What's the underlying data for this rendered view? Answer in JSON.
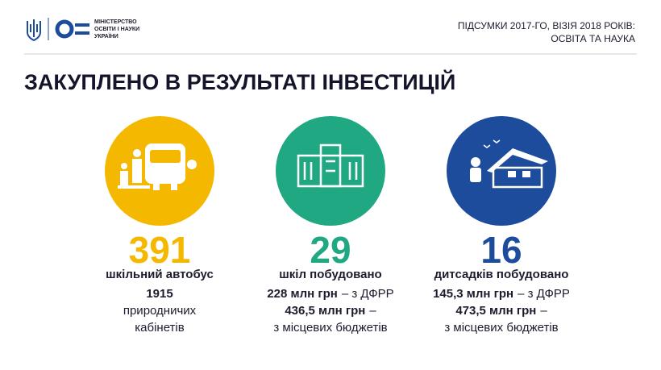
{
  "header": {
    "logo": [
      "МІНІСТЕРСТВО",
      "ОСВІТИ І НАУКИ",
      "УКРАЇНИ"
    ],
    "caption": [
      "ПІДСУМКИ 2017-ГО, ВІЗІЯ 2018 РОКІВ:",
      "ОСВІТА ТА НАУКА"
    ]
  },
  "title": "ЗАКУПЛЕНО В РЕЗУЛЬТАТІ ІНВЕСТИЦІЙ",
  "items": [
    {
      "color": "#f5b800",
      "number": "391",
      "label": "шкільний автобус",
      "lines": [
        [
          {
            "text": "1915",
            "bold": true
          }
        ],
        [
          {
            "text": "природничих"
          }
        ],
        [
          {
            "text": "кабінетів"
          }
        ]
      ]
    },
    {
      "color": "#1fa882",
      "number": "29",
      "label": "шкіл побудовано",
      "lines": [
        [
          {
            "text": "228 млн грн",
            "bold": true
          },
          {
            "text": "– з ДФРР"
          }
        ],
        [
          {
            "text": "436,5 млн грн",
            "bold": true
          },
          {
            "text": "–"
          }
        ],
        [
          {
            "text": "з місцевих бюджетів"
          }
        ]
      ]
    },
    {
      "color": "#1d4c9c",
      "number": "16",
      "label": "дитсадків побудовано",
      "lines": [
        [
          {
            "text": "145,3 млн грн",
            "bold": true
          },
          {
            "text": "– з ДФРР"
          }
        ],
        [
          {
            "text": "473,5 млн грн",
            "bold": true
          },
          {
            "text": "–"
          }
        ],
        [
          {
            "text": "з місцевих бюджетів"
          }
        ]
      ]
    }
  ]
}
